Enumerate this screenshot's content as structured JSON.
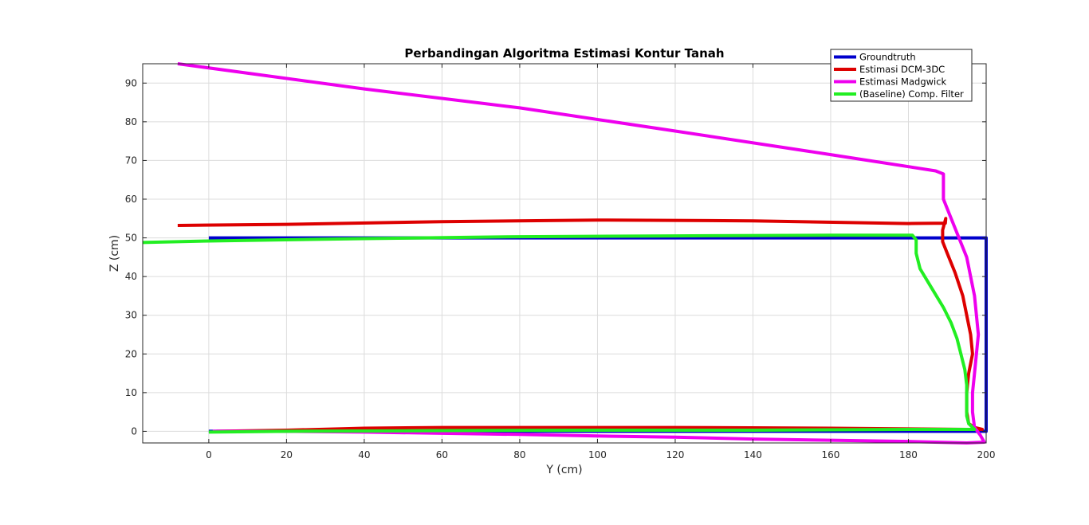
{
  "chart_data": {
    "type": "line",
    "title": "Perbandingan Algoritma Estimasi Kontur Tanah",
    "xlabel": "Y (cm)",
    "ylabel": "Z (cm)",
    "xlim": [
      -17,
      200
    ],
    "ylim": [
      -3,
      95
    ],
    "xticks": [
      0,
      20,
      40,
      60,
      80,
      100,
      120,
      140,
      160,
      180,
      200
    ],
    "yticks": [
      0,
      10,
      20,
      30,
      40,
      50,
      60,
      70,
      80,
      90
    ],
    "grid": true,
    "legend_position": "top-right",
    "series": [
      {
        "name": "Groundtruth",
        "color": "#0000cc",
        "points": [
          [
            0,
            50
          ],
          [
            200,
            50
          ],
          [
            200,
            0
          ],
          [
            0,
            0
          ]
        ]
      },
      {
        "name": "Estimasi DCM-3DC",
        "color": "#dd0000",
        "points": [
          [
            -8,
            53.2
          ],
          [
            20,
            53.5
          ],
          [
            60,
            54.2
          ],
          [
            100,
            54.6
          ],
          [
            140,
            54.4
          ],
          [
            180,
            53.7
          ],
          [
            189.5,
            53.8
          ],
          [
            189.6,
            55
          ],
          [
            188.8,
            52
          ],
          [
            188.8,
            49
          ],
          [
            190,
            46
          ],
          [
            192,
            41
          ],
          [
            194,
            35
          ],
          [
            195,
            30
          ],
          [
            196,
            25
          ],
          [
            196.5,
            20
          ],
          [
            195.5,
            15
          ],
          [
            195,
            10
          ],
          [
            195,
            5
          ],
          [
            195.5,
            2
          ],
          [
            197,
            1
          ],
          [
            199,
            0.5
          ],
          [
            195,
            0.5
          ],
          [
            160,
            0.8
          ],
          [
            120,
            1
          ],
          [
            100,
            1
          ],
          [
            80,
            1
          ],
          [
            60,
            1
          ],
          [
            40,
            0.8
          ],
          [
            20,
            0.3
          ],
          [
            2,
            0
          ]
        ]
      },
      {
        "name": "Estimasi Madgwick",
        "color": "#ee00ee",
        "points": [
          [
            -8,
            95
          ],
          [
            40,
            88.5
          ],
          [
            80,
            83.6
          ],
          [
            120,
            77.6
          ],
          [
            160,
            71.5
          ],
          [
            187,
            67.3
          ],
          [
            189,
            66.5
          ],
          [
            189,
            60
          ],
          [
            191,
            55
          ],
          [
            193,
            50
          ],
          [
            195,
            45
          ],
          [
            196,
            40
          ],
          [
            197,
            35
          ],
          [
            197.5,
            30
          ],
          [
            198,
            25
          ],
          [
            197.5,
            20
          ],
          [
            197,
            15
          ],
          [
            196.5,
            10
          ],
          [
            196.5,
            5
          ],
          [
            197,
            1
          ],
          [
            198.5,
            -1
          ],
          [
            199.5,
            -2.8
          ],
          [
            195,
            -3
          ],
          [
            180,
            -2.6
          ],
          [
            160,
            -2.3
          ],
          [
            140,
            -2
          ],
          [
            120,
            -1.5
          ],
          [
            100,
            -1.2
          ],
          [
            80,
            -0.8
          ],
          [
            60,
            -0.5
          ],
          [
            40,
            -0.2
          ],
          [
            20,
            0
          ],
          [
            1,
            0
          ]
        ]
      },
      {
        "name": "(Baseline) Comp. Filter",
        "color": "#22ee22",
        "points": [
          [
            -17,
            48.8
          ],
          [
            0,
            49.2
          ],
          [
            40,
            49.8
          ],
          [
            80,
            50.3
          ],
          [
            120,
            50.5
          ],
          [
            160,
            50.7
          ],
          [
            181,
            50.7
          ],
          [
            182,
            49.5
          ],
          [
            182,
            46
          ],
          [
            183,
            42
          ],
          [
            186,
            37
          ],
          [
            189,
            32
          ],
          [
            191,
            28
          ],
          [
            192.5,
            24
          ],
          [
            193.5,
            20
          ],
          [
            194.5,
            16
          ],
          [
            195,
            12
          ],
          [
            195,
            8
          ],
          [
            195,
            4
          ],
          [
            195.5,
            2
          ],
          [
            197,
            0.5
          ],
          [
            180,
            0.5
          ],
          [
            140,
            0.3
          ],
          [
            100,
            0.3
          ],
          [
            60,
            0.2
          ],
          [
            20,
            0
          ],
          [
            0,
            -0.2
          ]
        ]
      }
    ]
  }
}
